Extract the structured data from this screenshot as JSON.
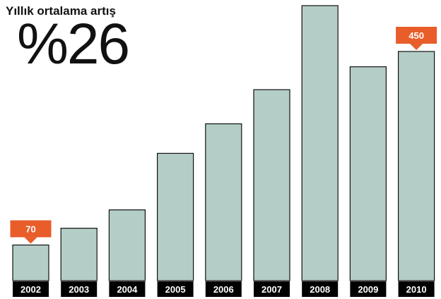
{
  "header": {
    "subtitle": "Yıllık ortalama artış",
    "headline": "%26"
  },
  "colors": {
    "bar_fill": "#b5cdc7",
    "bar_stroke": "#111111",
    "label_bg": "#000000",
    "label_text": "#ffffff",
    "callout": "#e85d2a"
  },
  "chart_data": {
    "type": "bar",
    "categories": [
      "2002",
      "2003",
      "2004",
      "2005",
      "2006",
      "2007",
      "2008",
      "2009",
      "2010"
    ],
    "values": [
      70,
      103,
      139,
      250,
      308,
      375,
      540,
      420,
      450
    ],
    "ylim": [
      0,
      540
    ],
    "grid": false,
    "title": "",
    "xlabel": "",
    "ylabel": "",
    "annotations": [
      {
        "category": "2002",
        "text": "70"
      },
      {
        "category": "2010",
        "text": "450"
      }
    ]
  }
}
